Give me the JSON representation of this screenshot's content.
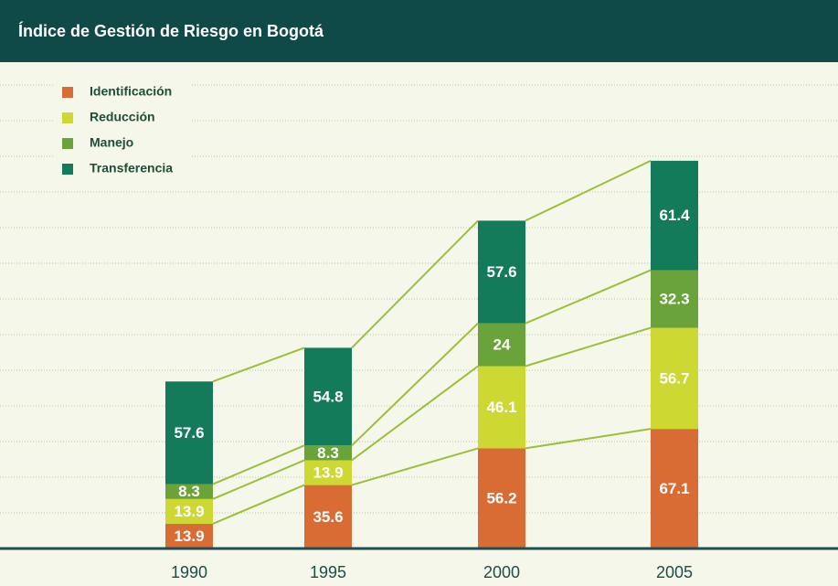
{
  "chart_data": {
    "type": "stacked_bar",
    "title": "Índice de Gestión de Riesgo en Bogotá",
    "categories": [
      "1990",
      "1995",
      "2000",
      "2005"
    ],
    "series": [
      {
        "name": "Identificación",
        "color": "#d96b35",
        "values": [
          13.9,
          35.6,
          56.2,
          67.1
        ]
      },
      {
        "name": "Reducción",
        "color": "#cdd832",
        "values": [
          13.9,
          13.9,
          46.1,
          56.7
        ]
      },
      {
        "name": "Manejo",
        "color": "#6aa33a",
        "values": [
          8.3,
          8.3,
          24,
          32.3
        ]
      },
      {
        "name": "Transferencia",
        "color": "#137a5a",
        "values": [
          57.6,
          54.8,
          57.6,
          61.4
        ]
      }
    ],
    "ylim": [
      0,
      260
    ],
    "yticks": [
      0,
      20,
      40,
      60,
      80,
      100,
      120,
      140,
      160,
      180,
      200,
      220,
      240,
      260
    ],
    "grid": true,
    "legend": "top-left"
  }
}
